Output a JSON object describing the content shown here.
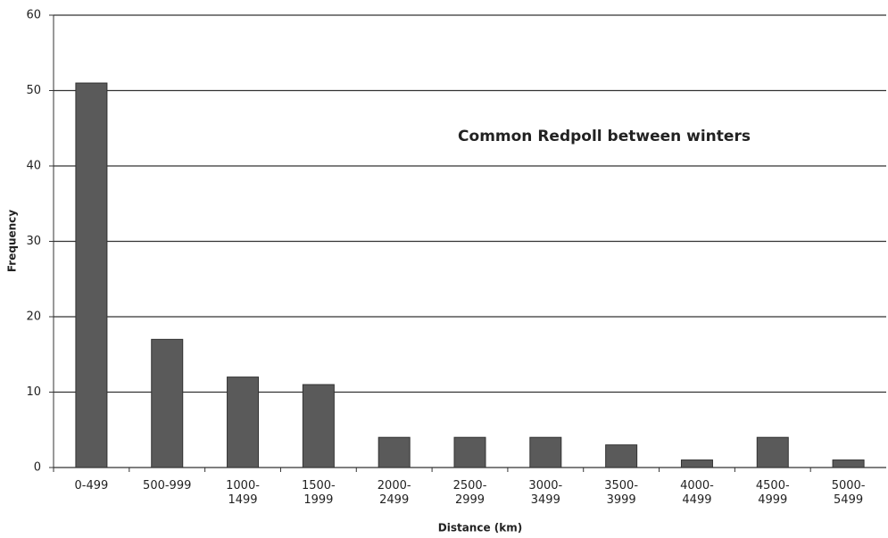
{
  "chart_data": {
    "type": "bar",
    "title": "Common Redpoll between winters",
    "x_label": "Distance (km)",
    "y_label": "Frequency",
    "categories": [
      "0-499",
      "500-999",
      "1000-1499",
      "1500-1999",
      "2000-2499",
      "2500-2999",
      "3000-3499",
      "3500-3999",
      "4000-4499",
      "4500-4999",
      "5000-5499"
    ],
    "values": [
      51,
      17,
      12,
      11,
      4,
      4,
      4,
      3,
      1,
      4,
      1
    ],
    "color": "#5a5a5a",
    "ylim": [
      0,
      60
    ],
    "yticks": [
      0,
      10,
      20,
      30,
      40,
      50,
      60
    ],
    "grid": true
  }
}
